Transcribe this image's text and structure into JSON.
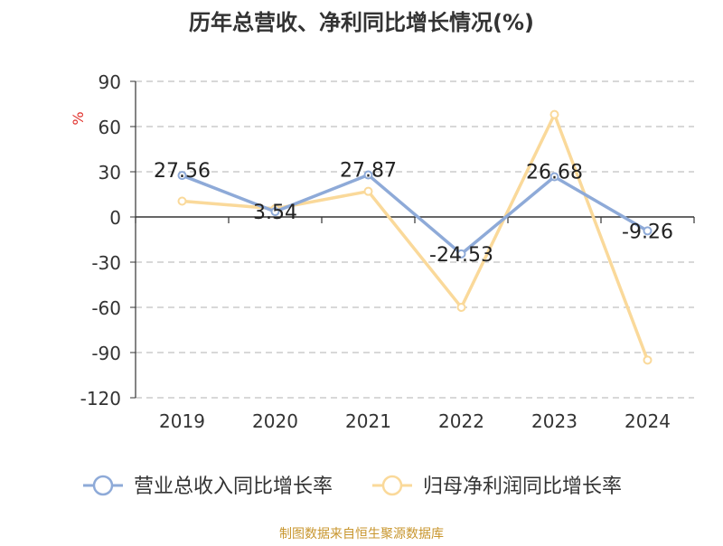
{
  "title": "历年总营收、净利同比增长情况(%)",
  "y_unit": "%",
  "source": "制图数据来自恒生聚源数据库",
  "chart_data": {
    "type": "line",
    "title": "历年总营收、净利同比增长情况(%)",
    "ylabel": "%",
    "x": [
      "2019",
      "2020",
      "2021",
      "2022",
      "2023",
      "2024"
    ],
    "ylim": [
      -120,
      90
    ],
    "yticks": [
      90,
      60,
      30,
      0,
      -30,
      -60,
      -90,
      -120
    ],
    "grid": "horizontal dashed",
    "legend_position": "bottom",
    "series": [
      {
        "name": "营业总收入同比增长率",
        "color": "#8eaad8",
        "values": [
          27.56,
          3.54,
          27.87,
          -24.53,
          26.68,
          -9.26
        ],
        "data_labels": [
          "27.56",
          "3.54",
          "27.87",
          "-24.53",
          "26.68",
          "-9.26"
        ]
      },
      {
        "name": "归母净利润同比增长率",
        "color": "#fad99a",
        "values": [
          10.5,
          5.5,
          17.0,
          -60.0,
          68.0,
          -95.0
        ]
      }
    ]
  }
}
